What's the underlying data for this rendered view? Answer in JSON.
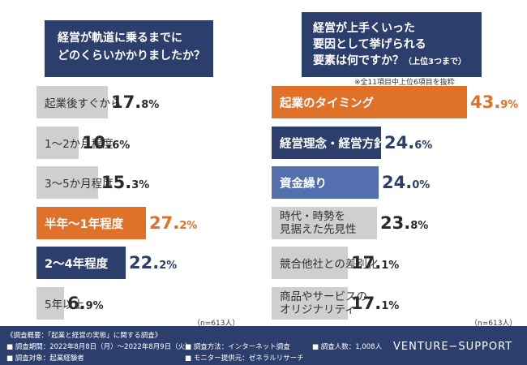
{
  "colors": {
    "navy": "#2c3e6b",
    "orange": "#e07128",
    "gray": "#cfcfcf",
    "blue": "#536fae"
  },
  "left_question": {
    "lines": [
      "経営が軌道に乗るまでに",
      "どのくらいかかりましたか？"
    ]
  },
  "right_question": {
    "lines": [
      "経営が上手くいった",
      "要因として挙げられる",
      "要素は何ですか？"
    ],
    "sub": "（上位3つまで）"
  },
  "right_note": "※全11項目中上位6項目を抜粋",
  "left_n": "（n=613人）",
  "right_n": "（n=613人）",
  "chart_data": [
    {
      "type": "bar",
      "orientation": "horizontal",
      "title": "経営が軌道に乗るまでにどのくらいかかりましたか？",
      "unit": "%",
      "xlim": [
        0,
        30
      ],
      "categories": [
        "起業後すぐから",
        "1〜2か月程度",
        "3〜5か月程度",
        "半年〜1年程度",
        "2〜4年程度",
        "5年以上"
      ],
      "values": [
        17.8,
        10.6,
        15.3,
        27.2,
        22.2,
        6.9
      ],
      "display": [
        [
          "17.",
          "8%"
        ],
        [
          "10.",
          "6%"
        ],
        [
          "15.",
          "3%"
        ],
        [
          "27.",
          "2%"
        ],
        [
          "22.",
          "2%"
        ],
        [
          "6.",
          "9%"
        ]
      ],
      "styles": [
        "gray",
        "gray",
        "gray",
        "orange",
        "navy",
        "gray"
      ]
    },
    {
      "type": "bar",
      "orientation": "horizontal",
      "title": "経営が上手くいった要因として挙げられる要素は何ですか？（上位3つまで）",
      "unit": "%",
      "xlim": [
        0,
        50
      ],
      "categories": [
        [
          "起業のタイミング"
        ],
        [
          "経営理念・経営方針"
        ],
        [
          "資金繰り"
        ],
        [
          "時代・時勢を",
          "見据えた先見性"
        ],
        [
          "競合他社との差別化"
        ],
        [
          "商品やサービスの",
          "オリジナリティ"
        ]
      ],
      "values": [
        43.9,
        24.6,
        24.0,
        23.8,
        17.1,
        17.1
      ],
      "display": [
        [
          "43.",
          "9%"
        ],
        [
          "24.",
          "6%"
        ],
        [
          "24.",
          "0%"
        ],
        [
          "23.",
          "8%"
        ],
        [
          "17.",
          "1%"
        ],
        [
          "17.",
          "1%"
        ]
      ],
      "styles": [
        "orange",
        "navy",
        "blue",
        "gray",
        "gray",
        "gray"
      ]
    }
  ],
  "footer": {
    "survey_title": "《調査概要：「起業と経営の実態」に関する調査》",
    "period": "■ 調査期間：2022年8月8日（月）〜2022年8月9日（火）",
    "target": "■ 調査対象：起業経験者",
    "method": "■ 調査方法：インターネット調査",
    "provider": "■ モニター提供元：ゼネラルリサーチ",
    "count": "■ 調査人数：1,008人",
    "brand": "VENTURE−SUPPORT"
  }
}
